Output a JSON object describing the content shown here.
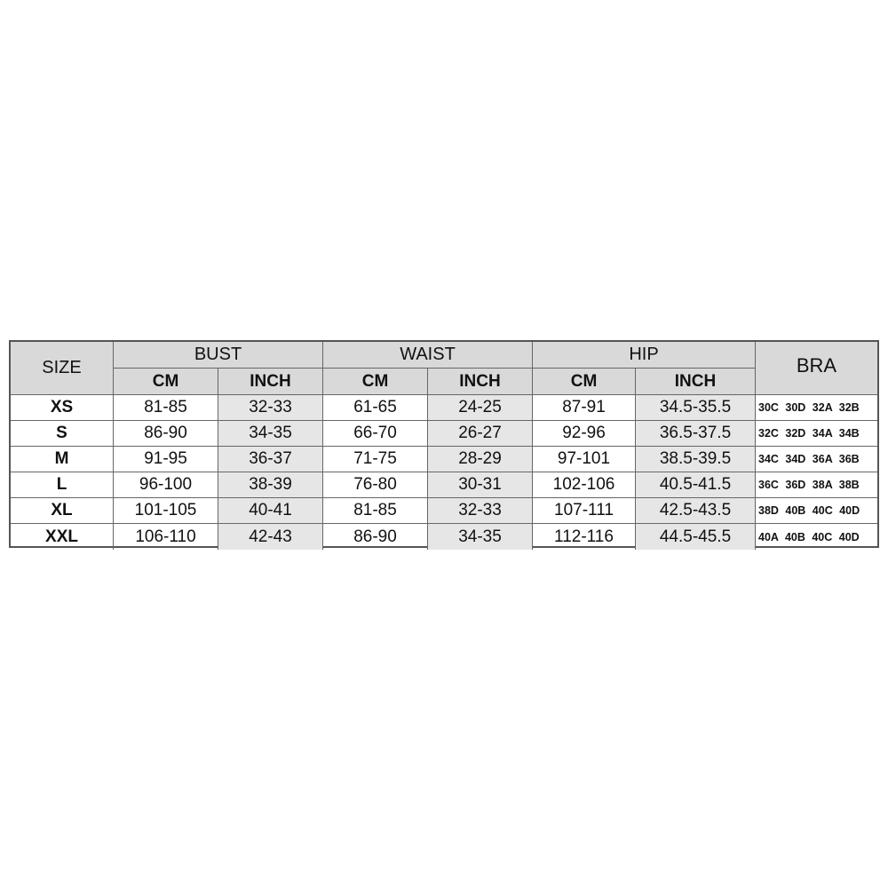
{
  "headers": {
    "size": "SIZE",
    "bust": "BUST",
    "waist": "WAIST",
    "hip": "HIP",
    "bra": "BRA",
    "cm": "CM",
    "inch": "INCH"
  },
  "rows": [
    {
      "size": "XS",
      "bust_cm": "81-85",
      "bust_inch": "32-33",
      "waist_cm": "61-65",
      "waist_inch": "24-25",
      "hip_cm": "87-91",
      "hip_inch": "34.5-35.5",
      "bra": "30C 30D 32A 32B"
    },
    {
      "size": "S",
      "bust_cm": "86-90",
      "bust_inch": "34-35",
      "waist_cm": "66-70",
      "waist_inch": "26-27",
      "hip_cm": "92-96",
      "hip_inch": "36.5-37.5",
      "bra": "32C 32D 34A 34B"
    },
    {
      "size": "M",
      "bust_cm": "91-95",
      "bust_inch": "36-37",
      "waist_cm": "71-75",
      "waist_inch": "28-29",
      "hip_cm": "97-101",
      "hip_inch": "38.5-39.5",
      "bra": "34C 34D 36A 36B"
    },
    {
      "size": "L",
      "bust_cm": "96-100",
      "bust_inch": "38-39",
      "waist_cm": "76-80",
      "waist_inch": "30-31",
      "hip_cm": "102-106",
      "hip_inch": "40.5-41.5",
      "bra": "36C 36D 38A 38B"
    },
    {
      "size": "XL",
      "bust_cm": "101-105",
      "bust_inch": "40-41",
      "waist_cm": "81-85",
      "waist_inch": "32-33",
      "hip_cm": "107-111",
      "hip_inch": "42.5-43.5",
      "bra": "38D 40B 40C 40D"
    },
    {
      "size": "XXL",
      "bust_cm": "106-110",
      "bust_inch": "42-43",
      "waist_cm": "86-90",
      "waist_inch": "34-35",
      "hip_cm": "112-116",
      "hip_inch": "44.5-45.5",
      "bra": "40A 40B 40C 40D"
    }
  ],
  "colors": {
    "header_bg": "#d9d9d9",
    "inch_bg": "#e6e6e6",
    "border": "#555555"
  }
}
